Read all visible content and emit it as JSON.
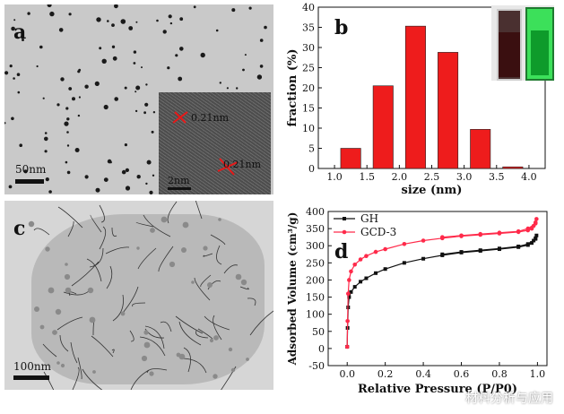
{
  "panels": {
    "a": {
      "label": "a",
      "scale": "50nm",
      "inset_scale": "2nm",
      "lattice1": "0.21nm",
      "lattice2": "0.21nm"
    },
    "b": {
      "label": "b"
    },
    "c": {
      "label": "c",
      "scale": "100nm"
    },
    "d": {
      "label": "d"
    }
  },
  "watermark": "材料分析与应用",
  "colors": {
    "bar": "#ee1c1c",
    "gh": "#111111",
    "gcd3": "#ff2a4a"
  },
  "chart_data": [
    {
      "type": "bar",
      "title": "",
      "xlabel": "size (nm)",
      "ylabel": "fraction (%)",
      "categories": [
        "1.25",
        "1.75",
        "2.25",
        "2.75",
        "3.25",
        "3.75"
      ],
      "bar_centers": [
        1.25,
        1.75,
        2.25,
        2.75,
        3.25,
        3.75
      ],
      "values": [
        5,
        20.5,
        35.3,
        28.8,
        9.7,
        0.4
      ],
      "xlim": [
        0.75,
        4.25
      ],
      "ylim": [
        0,
        40
      ],
      "xticks": [
        "1.0",
        "1.5",
        "2.0",
        "2.5",
        "3.0",
        "3.5",
        "4.0"
      ],
      "yticks": [
        "0",
        "5",
        "10",
        "15",
        "20",
        "25",
        "30",
        "35",
        "40"
      ]
    },
    {
      "type": "line",
      "title": "",
      "xlabel": "Relative Pressure (P/P0)",
      "ylabel": "Adsorbed Volume (cm³/g)",
      "xlim": [
        -0.1,
        1.05
      ],
      "ylim": [
        -50,
        400
      ],
      "xticks": [
        "0.0",
        "0.2",
        "0.4",
        "0.6",
        "0.8",
        "1.0"
      ],
      "yticks": [
        "-50",
        "0",
        "50",
        "100",
        "150",
        "200",
        "250",
        "300",
        "350",
        "400"
      ],
      "legend_position": "top-left",
      "series": [
        {
          "name": "GH",
          "x": [
            0.0,
            0.002,
            0.005,
            0.01,
            0.02,
            0.04,
            0.07,
            0.1,
            0.15,
            0.2,
            0.3,
            0.4,
            0.5,
            0.6,
            0.7,
            0.8,
            0.9,
            0.95,
            0.97,
            0.98,
            0.99,
            0.995,
            0.99,
            0.95,
            0.9,
            0.8,
            0.7,
            0.6,
            0.5
          ],
          "y": [
            5,
            60,
            120,
            150,
            165,
            180,
            195,
            205,
            220,
            232,
            250,
            262,
            272,
            280,
            285,
            290,
            296,
            302,
            308,
            315,
            322,
            330,
            320,
            305,
            298,
            292,
            287,
            282,
            275
          ]
        },
        {
          "name": "GCD-3",
          "x": [
            0.0,
            0.002,
            0.005,
            0.01,
            0.02,
            0.04,
            0.07,
            0.1,
            0.15,
            0.2,
            0.3,
            0.4,
            0.5,
            0.6,
            0.7,
            0.8,
            0.9,
            0.95,
            0.97,
            0.98,
            0.99,
            0.995,
            0.99,
            0.95,
            0.9,
            0.8,
            0.7,
            0.6,
            0.5
          ],
          "y": [
            5,
            80,
            160,
            200,
            225,
            245,
            260,
            270,
            282,
            290,
            305,
            315,
            322,
            328,
            332,
            336,
            340,
            345,
            350,
            358,
            368,
            378,
            365,
            350,
            342,
            338,
            334,
            330,
            325
          ]
        }
      ]
    }
  ]
}
